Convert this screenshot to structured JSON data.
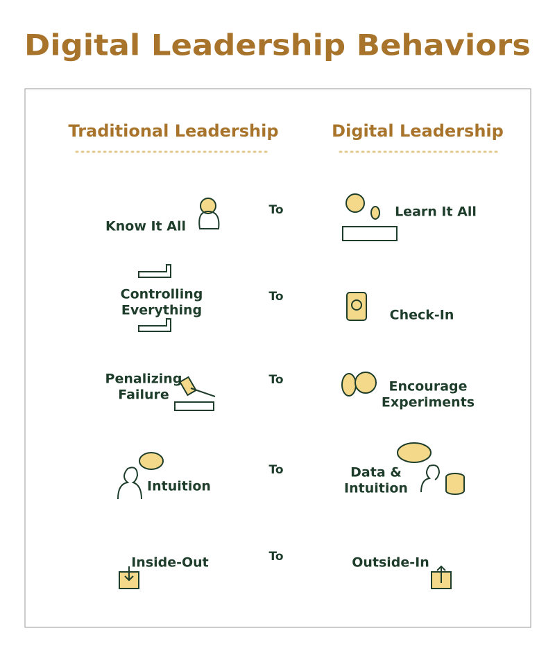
{
  "title": "Digital Leadership Behaviors",
  "columns": {
    "traditional": "Traditional Leadership",
    "digital": "Digital Leadership"
  },
  "rows": [
    {
      "from": [
        "Know It All"
      ],
      "connector": "To",
      "to": [
        "Learn It All"
      ]
    },
    {
      "from": [
        "Controlling",
        "Everything"
      ],
      "connector": "To",
      "to": [
        "Check-In"
      ]
    },
    {
      "from": [
        "Penalizing",
        "Failure"
      ],
      "connector": "To",
      "to": [
        "Encourage",
        "Experiments"
      ]
    },
    {
      "from": [
        "Intuition"
      ],
      "connector": "To",
      "to": [
        "Data &",
        "Intuition"
      ]
    },
    {
      "from": [
        "Inside-Out"
      ],
      "connector": "To",
      "to": [
        "Outside-In"
      ]
    }
  ]
}
